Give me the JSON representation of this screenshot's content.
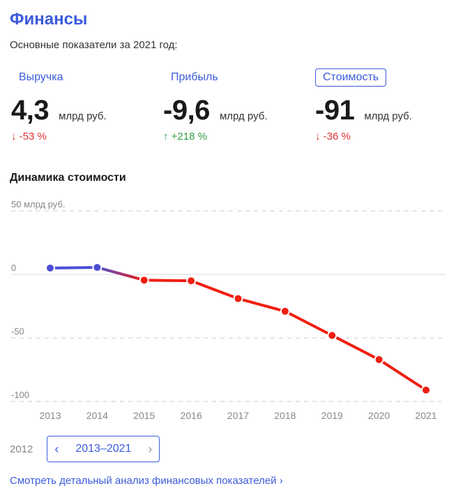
{
  "header": {
    "title": "Финансы",
    "subtitle": "Основные показатели за 2021 год:"
  },
  "metrics": [
    {
      "label": "Выручка",
      "value": "4,3",
      "unit": "млрд руб.",
      "change": "↓ -53 %",
      "direction": "down",
      "active": false
    },
    {
      "label": "Прибыль",
      "value": "-9,6",
      "unit": "млрд руб.",
      "change": "↑ +218 %",
      "direction": "up",
      "active": false
    },
    {
      "label": "Стоимость",
      "value": "-91",
      "unit": "млрд руб.",
      "change": "↓ -36 %",
      "direction": "down",
      "active": true
    }
  ],
  "chart_title": "Динамика стоимости",
  "chart_data": {
    "type": "line",
    "x": [
      "2013",
      "2014",
      "2015",
      "2016",
      "2017",
      "2018",
      "2019",
      "2020",
      "2021"
    ],
    "series": [
      {
        "values": [
          5,
          5.5,
          -4.5,
          -5,
          -19,
          -29,
          -48,
          -67,
          -91
        ]
      }
    ],
    "yticks": [
      {
        "value": 50,
        "label": "50 млрд руб."
      },
      {
        "value": 0,
        "label": "0"
      },
      {
        "value": -50,
        "label": "-50"
      },
      {
        "value": -100,
        "label": "-100"
      }
    ],
    "ylim": [
      -100,
      50
    ],
    "grid": true,
    "colors": {
      "positive": "#4c4fd6",
      "negative": "#f01e10",
      "grid": "#cccccc",
      "zero_line": "#e6e6e6"
    }
  },
  "range_nav": {
    "prev_year": "2012",
    "range_label": "2013–2021",
    "left_arrow": "‹",
    "right_arrow": "›"
  },
  "details_link": "Смотреть детальный анализ финансовых показателей ›"
}
